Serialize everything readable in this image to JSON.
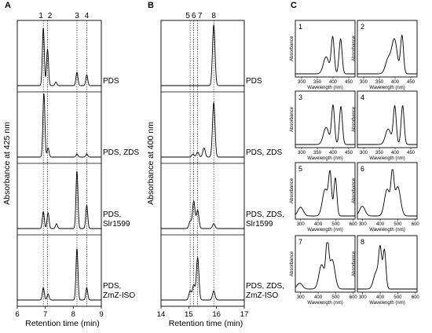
{
  "chart_data": [
    {
      "type": "line",
      "panel": "A",
      "ylabel": "Absorbance at 425 nm",
      "xlabel": "Retention time (min)",
      "xlim": [
        6,
        9
      ],
      "xticks": [
        "6",
        "7",
        "8",
        "9"
      ],
      "peak_labels": [
        {
          "label": "1",
          "x": 6.93
        },
        {
          "label": "2",
          "x": 7.08
        },
        {
          "label": "3",
          "x": 8.13
        },
        {
          "label": "4",
          "x": 8.48
        }
      ],
      "series": [
        {
          "lines": [
            "PDS"
          ],
          "peaks": [
            {
              "x": 6.93,
              "h": 0.95
            },
            {
              "x": 7.08,
              "h": 0.6
            },
            {
              "x": 7.38,
              "h": 0.06
            },
            {
              "x": 8.13,
              "h": 0.22
            },
            {
              "x": 8.48,
              "h": 0.18
            }
          ]
        },
        {
          "lines": [
            "PDS, ZDS"
          ],
          "peaks": [
            {
              "x": 6.95,
              "h": 1.05
            },
            {
              "x": 7.1,
              "h": 0.15
            },
            {
              "x": 8.13,
              "h": 0.05
            },
            {
              "x": 8.48,
              "h": 0.05
            }
          ]
        },
        {
          "lines": [
            "PDS,",
            "Slr1599"
          ],
          "peaks": [
            {
              "x": 6.93,
              "h": 0.28
            },
            {
              "x": 7.1,
              "h": 0.26
            },
            {
              "x": 7.4,
              "h": 0.08
            },
            {
              "x": 8.13,
              "h": 0.95
            },
            {
              "x": 8.48,
              "h": 0.38
            }
          ]
        },
        {
          "lines": [
            "PDS,",
            "ZmZ-ISO"
          ],
          "peaks": [
            {
              "x": 6.93,
              "h": 0.2
            },
            {
              "x": 7.1,
              "h": 0.1
            },
            {
              "x": 8.13,
              "h": 0.85
            },
            {
              "x": 8.48,
              "h": 0.2
            }
          ]
        }
      ]
    },
    {
      "type": "line",
      "panel": "B",
      "ylabel": "Absorbance at 400 nm",
      "xlabel": "Retention time (min)",
      "xlim": [
        14,
        17
      ],
      "xticks": [
        "14",
        "15",
        "16",
        "17"
      ],
      "peak_labels": [
        {
          "label": "5",
          "x": 15.05
        },
        {
          "label": "6",
          "x": 15.18
        },
        {
          "label": "7",
          "x": 15.32
        },
        {
          "label": "8",
          "x": 15.9
        }
      ],
      "series": [
        {
          "lines": [
            "PDS"
          ],
          "peaks": [
            {
              "x": 15.9,
              "h": 1.0
            }
          ]
        },
        {
          "lines": [
            "PDS, ZDS"
          ],
          "peaks": [
            {
              "x": 15.15,
              "h": 0.05
            },
            {
              "x": 15.32,
              "h": 0.08
            },
            {
              "x": 15.55,
              "h": 0.15
            },
            {
              "x": 15.9,
              "h": 0.9
            }
          ]
        },
        {
          "lines": [
            "PDS, ZDS,",
            "Slr1599"
          ],
          "peaks": [
            {
              "x": 15.05,
              "h": 0.12
            },
            {
              "x": 15.18,
              "h": 0.45
            },
            {
              "x": 15.32,
              "h": 0.3
            },
            {
              "x": 15.9,
              "h": 0.08
            }
          ]
        },
        {
          "lines": [
            "PDS, ZDS,",
            "ZmZ-ISO"
          ],
          "peaks": [
            {
              "x": 15.05,
              "h": 0.15
            },
            {
              "x": 15.18,
              "h": 0.25
            },
            {
              "x": 15.32,
              "h": 0.7
            },
            {
              "x": 15.9,
              "h": 0.15
            }
          ]
        }
      ]
    },
    {
      "type": "line",
      "panel": "C",
      "xlabel": "Wavelength (nm)",
      "ylabel": "Absorbance",
      "spectra": [
        {
          "label": "1",
          "xticks": [
            "300",
            "350",
            "400",
            "450"
          ],
          "xlim": [
            280,
            470
          ],
          "peaks": [
            {
              "x": 378,
              "h": 0.35
            },
            {
              "x": 399,
              "h": 0.75
            },
            {
              "x": 424,
              "h": 0.72
            }
          ]
        },
        {
          "label": "2",
          "xticks": [
            "300",
            "350",
            "400",
            "450"
          ],
          "xlim": [
            280,
            470
          ],
          "peaks": [
            {
              "x": 378,
              "h": 0.3
            },
            {
              "x": 398,
              "h": 0.7
            },
            {
              "x": 422,
              "h": 0.78
            }
          ]
        },
        {
          "label": "3",
          "xticks": [
            "300",
            "350",
            "400",
            "450"
          ],
          "xlim": [
            280,
            470
          ],
          "peaks": [
            {
              "x": 378,
              "h": 0.35
            },
            {
              "x": 400,
              "h": 0.8
            },
            {
              "x": 425,
              "h": 0.78
            }
          ]
        },
        {
          "label": "4",
          "xticks": [
            "300",
            "350",
            "400",
            "450"
          ],
          "xlim": [
            280,
            470
          ],
          "peaks": [
            {
              "x": 378,
              "h": 0.32
            },
            {
              "x": 399,
              "h": 0.78
            },
            {
              "x": 424,
              "h": 0.8
            }
          ]
        },
        {
          "label": "5",
          "xticks": [
            "300",
            "400",
            "500",
            "600"
          ],
          "xlim": [
            270,
            610
          ],
          "peaks": [
            {
              "x": 300,
              "h": 0.18
            },
            {
              "x": 440,
              "h": 0.55
            },
            {
              "x": 468,
              "h": 0.82
            },
            {
              "x": 498,
              "h": 0.78
            }
          ]
        },
        {
          "label": "6",
          "xticks": [
            "300",
            "400",
            "500",
            "600"
          ],
          "xlim": [
            270,
            610
          ],
          "peaks": [
            {
              "x": 298,
              "h": 0.2
            },
            {
              "x": 440,
              "h": 0.55
            },
            {
              "x": 470,
              "h": 0.82
            },
            {
              "x": 500,
              "h": 0.6
            }
          ]
        },
        {
          "label": "7",
          "xticks": [
            "300",
            "400",
            "500",
            "600"
          ],
          "xlim": [
            270,
            610
          ],
          "peaks": [
            {
              "x": 295,
              "h": 0.12
            },
            {
              "x": 420,
              "h": 0.5
            },
            {
              "x": 452,
              "h": 0.88
            },
            {
              "x": 480,
              "h": 0.6
            }
          ]
        },
        {
          "label": "8",
          "xticks": [
            "300",
            "400",
            "500",
            "600"
          ],
          "xlim": [
            270,
            610
          ],
          "peaks": [
            {
              "x": 378,
              "h": 0.35
            },
            {
              "x": 400,
              "h": 0.75
            },
            {
              "x": 424,
              "h": 0.8
            }
          ]
        }
      ]
    }
  ]
}
